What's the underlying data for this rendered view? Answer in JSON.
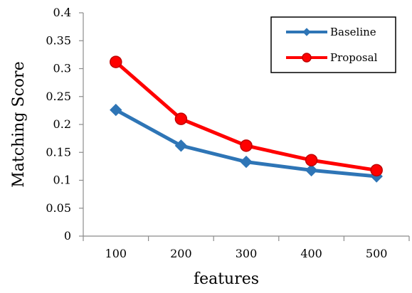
{
  "chart_data": {
    "type": "line",
    "title": "",
    "xlabel": "features",
    "ylabel": "Matching Score",
    "categories": [
      "100",
      "200",
      "300",
      "400",
      "500"
    ],
    "ylim": [
      0,
      0.4
    ],
    "yticks": [
      "0",
      "0.05",
      "0.1",
      "0.15",
      "0.2",
      "0.25",
      "0.3",
      "0.35",
      "0.4"
    ],
    "grid": false,
    "legend_position": "top-right",
    "series": [
      {
        "name": "Baseline",
        "values": [
          0.226,
          0.162,
          0.133,
          0.118,
          0.107
        ],
        "color": "#2e75b6",
        "marker": "diamond"
      },
      {
        "name": "Proposal",
        "values": [
          0.312,
          0.21,
          0.162,
          0.136,
          0.118
        ],
        "color": "#ff0000",
        "marker": "circle"
      }
    ]
  }
}
